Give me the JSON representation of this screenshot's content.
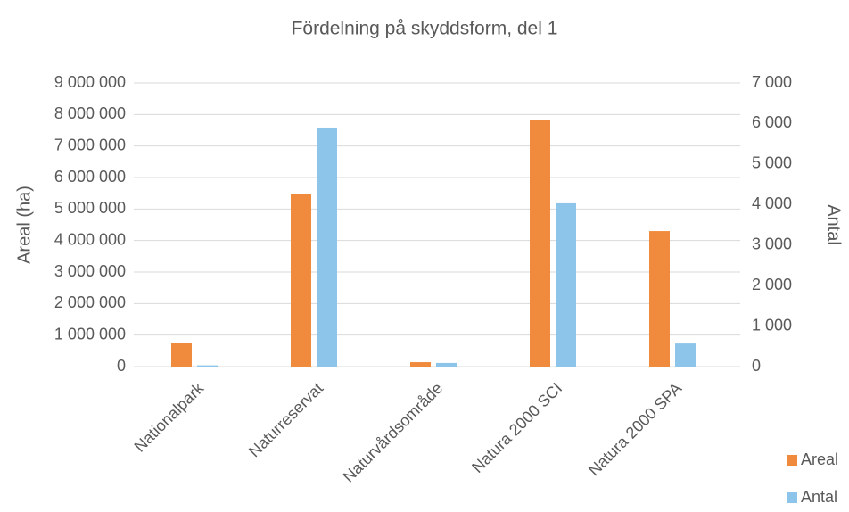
{
  "chart_data": {
    "type": "bar",
    "title": "Fördelning på skyddsform, del 1",
    "y_label": "Areal (ha)",
    "y2_label": "Antal",
    "categories": [
      "Nationalpark",
      "Naturreservat",
      "Naturvårdsområde",
      "Natura 2000 SCI",
      "Natura 2000 SPA"
    ],
    "series": [
      {
        "name": "Areal",
        "color": "#f08a3c",
        "values": [
          760000,
          5470000,
          140000,
          7820000,
          4300000
        ]
      },
      {
        "name": "Antal",
        "color": "#8cc4ea",
        "axis": "y2",
        "values": [
          30,
          5900,
          90,
          4030,
          570
        ]
      }
    ],
    "ylim": [
      0,
      9000000
    ],
    "yticks": [
      0,
      {
        "value": 1000000,
        "label": "1 000 000"
      },
      {
        "value": 2000000,
        "label": "2 000 000"
      },
      {
        "value": 3000000,
        "label": "3 000 000"
      },
      {
        "value": 4000000,
        "label": "4 000 000"
      },
      {
        "value": 5000000,
        "label": "5 000 000"
      },
      {
        "value": 6000000,
        "label": "6 000 000"
      },
      {
        "value": 7000000,
        "label": "7 000 000"
      },
      {
        "value": 8000000,
        "label": "8 000 000"
      },
      {
        "value": 9000000,
        "label": "9 000 000"
      }
    ],
    "y2lim": [
      0,
      7000
    ],
    "y2ticks": [
      0,
      {
        "value": 1000,
        "label": "1 000"
      },
      {
        "value": 2000,
        "label": "2 000"
      },
      {
        "value": 3000,
        "label": "3 000"
      },
      {
        "value": 4000,
        "label": "4 000"
      },
      {
        "value": 5000,
        "label": "5 000"
      },
      {
        "value": 6000,
        "label": "6 000"
      },
      {
        "value": 7000,
        "label": "7 000"
      }
    ],
    "grid": true,
    "legend": "bottom-right"
  }
}
